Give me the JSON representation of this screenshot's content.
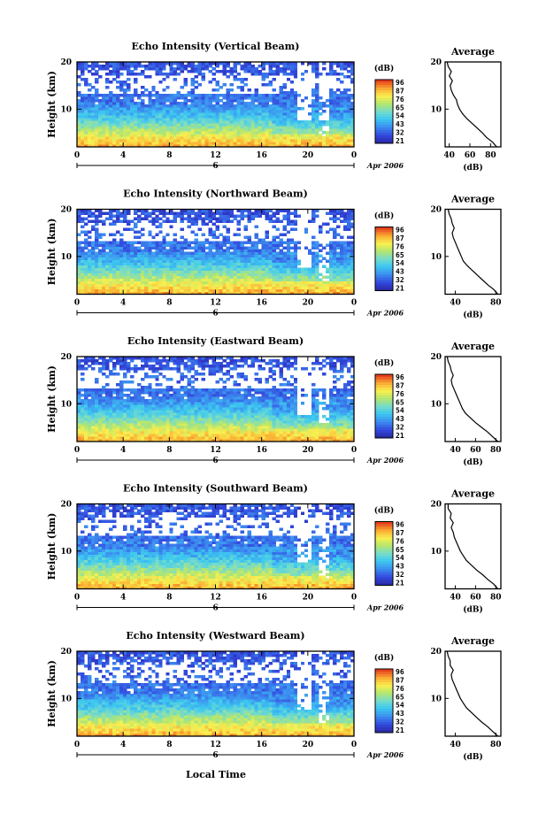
{
  "figure": {
    "xlabel": "Local Time",
    "date_label": "Apr 2006",
    "day_label": "6"
  },
  "chart_data": [
    {
      "type": "heatmap",
      "title": "Echo Intensity (Vertical Beam)",
      "ylabel": "Height (km)",
      "x_ticks": [
        "0",
        "4",
        "8",
        "12",
        "16",
        "20",
        "0"
      ],
      "xlim": [
        0,
        24
      ],
      "y_ticks": [
        "10",
        "20"
      ],
      "ylim": [
        2,
        20
      ],
      "colorbar": {
        "label": "(dB)",
        "ticks": [
          "96",
          "87",
          "76",
          "65",
          "54",
          "43",
          "32",
          "21"
        ]
      },
      "profile": {
        "title": "Average",
        "xlabel": "(dB)",
        "x_ticks": [
          "40",
          "60",
          "80"
        ],
        "y_ticks": [
          "10",
          "20"
        ],
        "xlim": [
          36,
          90
        ],
        "ylim": [
          2,
          20
        ],
        "height_km": [
          2,
          3,
          4,
          5,
          6,
          7,
          8,
          9,
          10,
          11,
          12,
          13,
          14,
          15,
          16,
          17,
          18,
          19,
          20
        ],
        "db": [
          86,
          82,
          76,
          72,
          67,
          62,
          57,
          53,
          50,
          48,
          47,
          44,
          42,
          41,
          43,
          40,
          42,
          39,
          38
        ]
      }
    },
    {
      "type": "heatmap",
      "title": "Echo Intensity (Northward Beam)",
      "ylabel": "Height (km)",
      "x_ticks": [
        "0",
        "4",
        "8",
        "12",
        "16",
        "20",
        "0"
      ],
      "xlim": [
        0,
        24
      ],
      "y_ticks": [
        "10",
        "20"
      ],
      "ylim": [
        2,
        20
      ],
      "colorbar": {
        "label": "(dB)",
        "ticks": [
          "96",
          "87",
          "76",
          "65",
          "54",
          "43",
          "32",
          "21"
        ]
      },
      "profile": {
        "title": "Average",
        "xlabel": "(dB)",
        "x_ticks": [
          "40",
          "80"
        ],
        "y_ticks": [
          "10",
          "20"
        ],
        "xlim": [
          30,
          85
        ],
        "ylim": [
          2,
          20
        ],
        "height_km": [
          2,
          3,
          4,
          5,
          6,
          7,
          8,
          9,
          10,
          11,
          12,
          13,
          14,
          15,
          16,
          17,
          18,
          19,
          20
        ],
        "db": [
          82,
          78,
          72,
          67,
          62,
          57,
          52,
          48,
          46,
          44,
          42,
          40,
          38,
          37,
          39,
          37,
          36,
          34,
          33
        ]
      }
    },
    {
      "type": "heatmap",
      "title": "Echo Intensity (Eastward Beam)",
      "ylabel": "Height (km)",
      "x_ticks": [
        "0",
        "4",
        "8",
        "12",
        "16",
        "20",
        "0"
      ],
      "xlim": [
        0,
        24
      ],
      "y_ticks": [
        "10",
        "20"
      ],
      "ylim": [
        2,
        20
      ],
      "colorbar": {
        "label": "(dB)",
        "ticks": [
          "96",
          "87",
          "76",
          "65",
          "54",
          "43",
          "32",
          "21"
        ]
      },
      "profile": {
        "title": "Average",
        "xlabel": "(dB)",
        "x_ticks": [
          "40",
          "60",
          "80"
        ],
        "y_ticks": [
          "10",
          "20"
        ],
        "xlim": [
          30,
          85
        ],
        "ylim": [
          2,
          20
        ],
        "height_km": [
          2,
          3,
          4,
          5,
          6,
          7,
          8,
          9,
          10,
          11,
          12,
          13,
          14,
          15,
          16,
          17,
          18,
          19,
          20
        ],
        "db": [
          82,
          77,
          72,
          66,
          60,
          55,
          50,
          47,
          45,
          43,
          41,
          39,
          37,
          36,
          38,
          36,
          35,
          33,
          32
        ]
      }
    },
    {
      "type": "heatmap",
      "title": "Echo Intensity (Southward Beam)",
      "ylabel": "Height (km)",
      "x_ticks": [
        "0",
        "4",
        "8",
        "12",
        "16",
        "20",
        "0"
      ],
      "xlim": [
        0,
        24
      ],
      "y_ticks": [
        "10",
        "20"
      ],
      "ylim": [
        2,
        20
      ],
      "colorbar": {
        "label": "(dB)",
        "ticks": [
          "96",
          "87",
          "76",
          "65",
          "54",
          "43",
          "32",
          "21"
        ]
      },
      "profile": {
        "title": "Average",
        "xlabel": "(dB)",
        "x_ticks": [
          "40",
          "60",
          "80"
        ],
        "y_ticks": [
          "10",
          "20"
        ],
        "xlim": [
          30,
          85
        ],
        "ylim": [
          2,
          20
        ],
        "height_km": [
          2,
          3,
          4,
          5,
          6,
          7,
          8,
          9,
          10,
          11,
          12,
          13,
          14,
          15,
          16,
          17,
          18,
          19,
          20
        ],
        "db": [
          82,
          78,
          72,
          67,
          61,
          56,
          51,
          48,
          45,
          43,
          41,
          39,
          38,
          36,
          38,
          35,
          36,
          33,
          33
        ]
      }
    },
    {
      "type": "heatmap",
      "title": "Echo Intensity (Westward Beam)",
      "ylabel": "Height (km)",
      "x_ticks": [
        "0",
        "4",
        "8",
        "12",
        "16",
        "20",
        "0"
      ],
      "xlim": [
        0,
        24
      ],
      "y_ticks": [
        "10",
        "20"
      ],
      "ylim": [
        2,
        20
      ],
      "colorbar": {
        "label": "(dB)",
        "ticks": [
          "96",
          "87",
          "76",
          "65",
          "54",
          "43",
          "32",
          "21"
        ]
      },
      "profile": {
        "title": "Average",
        "xlabel": "(dB)",
        "x_ticks": [
          "40",
          "80"
        ],
        "y_ticks": [
          "10",
          "20"
        ],
        "xlim": [
          30,
          85
        ],
        "ylim": [
          2,
          20
        ],
        "height_km": [
          2,
          3,
          4,
          5,
          6,
          7,
          8,
          9,
          10,
          11,
          12,
          13,
          14,
          15,
          16,
          17,
          18,
          19,
          20
        ],
        "db": [
          82,
          77,
          72,
          66,
          61,
          56,
          51,
          48,
          45,
          43,
          41,
          39,
          37,
          36,
          38,
          35,
          35,
          33,
          32
        ]
      }
    }
  ]
}
